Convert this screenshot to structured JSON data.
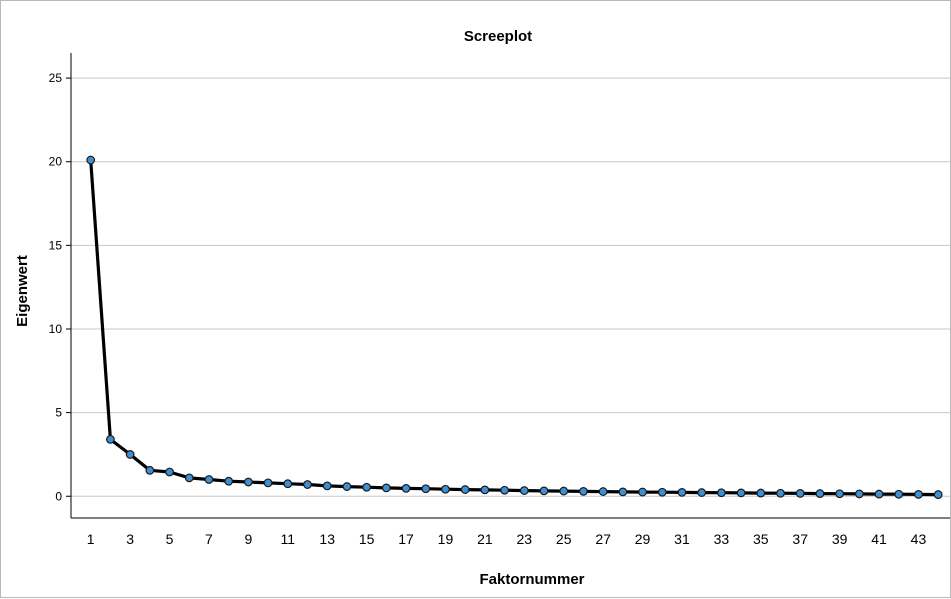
{
  "chart_data": {
    "type": "line",
    "title": "Screeplot",
    "xlabel": "Faktornummer",
    "ylabel": "Eigenwert",
    "x": [
      1,
      2,
      3,
      4,
      5,
      6,
      7,
      8,
      9,
      10,
      11,
      12,
      13,
      14,
      15,
      16,
      17,
      18,
      19,
      20,
      21,
      22,
      23,
      24,
      25,
      26,
      27,
      28,
      29,
      30,
      31,
      32,
      33,
      34,
      35,
      36,
      37,
      38,
      39,
      40,
      41,
      42,
      43,
      44
    ],
    "values": [
      20.1,
      3.4,
      2.5,
      1.55,
      1.45,
      1.1,
      1.0,
      0.9,
      0.85,
      0.8,
      0.75,
      0.7,
      0.62,
      0.58,
      0.54,
      0.5,
      0.47,
      0.45,
      0.42,
      0.4,
      0.38,
      0.36,
      0.34,
      0.32,
      0.31,
      0.29,
      0.28,
      0.26,
      0.25,
      0.24,
      0.23,
      0.22,
      0.21,
      0.2,
      0.19,
      0.18,
      0.17,
      0.16,
      0.15,
      0.14,
      0.13,
      0.12,
      0.11,
      0.1
    ],
    "x_tick_labels": [
      "1",
      "3",
      "5",
      "7",
      "9",
      "11",
      "13",
      "15",
      "17",
      "19",
      "21",
      "23",
      "25",
      "27",
      "29",
      "31",
      "33",
      "35",
      "37",
      "39",
      "41",
      "43"
    ],
    "y_ticks": [
      0,
      5,
      10,
      15,
      20,
      25
    ],
    "y_tick_labels": [
      "0",
      "5",
      "10",
      "15",
      "20",
      "25"
    ],
    "ylim": [
      -1.3,
      26.5
    ],
    "xlim": [
      0,
      44.6
    ],
    "grid": "horizontal",
    "legend": "none",
    "colors": {
      "line": "#000000",
      "marker_fill": "#3d8fd1",
      "marker_edge": "#1a1a1a",
      "grid": "#c8c8c8",
      "axis": "#000000"
    }
  }
}
